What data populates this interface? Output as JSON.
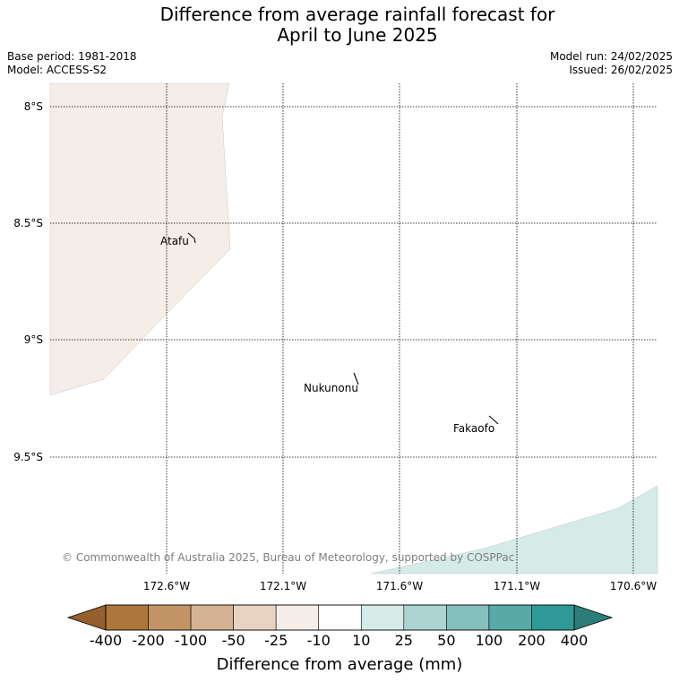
{
  "header": {
    "title_line1": "Difference from average rainfall forecast for",
    "title_line2": "April to June 2025",
    "base_period": "Base period: 1981-2018",
    "model": "Model: ACCESS-S2",
    "model_run": "Model run: 24/02/2025",
    "issued": "Issued: 26/02/2025"
  },
  "map": {
    "lat_labels": [
      "8°S",
      "8.5°S",
      "9°S",
      "9.5°S"
    ],
    "lon_labels": [
      "172.6°W",
      "172.1°W",
      "171.6°W",
      "171.1°W",
      "170.6°W"
    ],
    "places": [
      {
        "name": "Atafu"
      },
      {
        "name": "Nukunonu"
      },
      {
        "name": "Fakaofo"
      }
    ],
    "regions": [
      {
        "category": "-25 to -10",
        "color": "#f5ede7"
      },
      {
        "category": "10 to 25",
        "color": "#d4ebe8"
      }
    ],
    "copyright": "© Commonwealth of Australia 2025, Bureau of Meteorology, supported by COSPPac"
  },
  "colorbar": {
    "title": "Difference from average (mm)",
    "under_color": "#93602e",
    "over_color": "#2a7d7b",
    "bins": [
      "#ad773c",
      "#c29465",
      "#d4b394",
      "#e8d2c1",
      "#f5ede7",
      "#ffffff",
      "#d4ebe8",
      "#aed4d2",
      "#85c0bd",
      "#58aaa9",
      "#2f9997"
    ],
    "tick_labels": [
      "-400",
      "-200",
      "-100",
      "-50",
      "-25",
      "-10",
      "10",
      "25",
      "50",
      "100",
      "200",
      "400"
    ]
  }
}
